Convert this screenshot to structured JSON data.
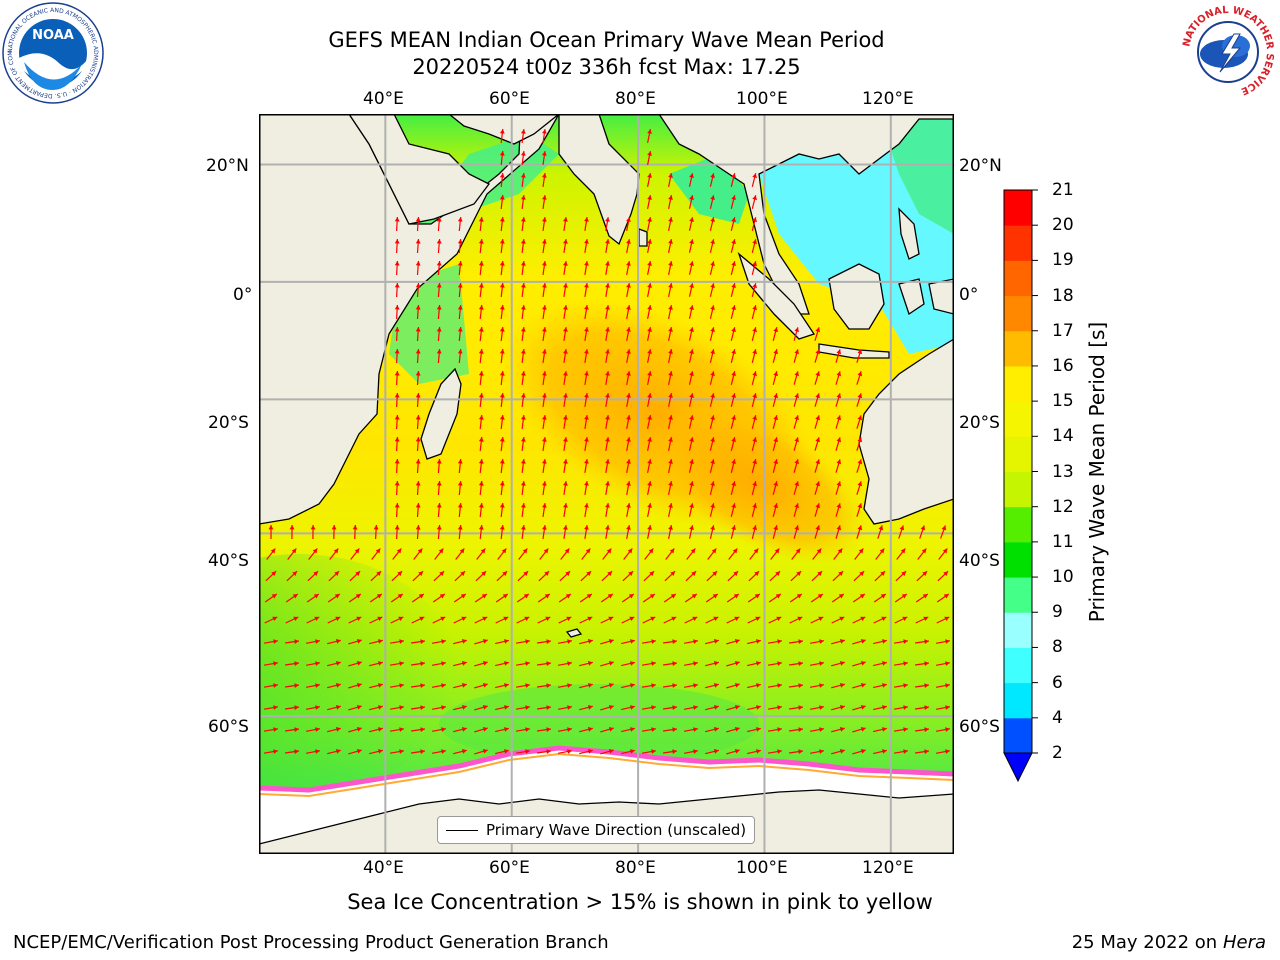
{
  "header": {
    "title_line1": "GEFS MEAN Indian Ocean Primary Wave Mean Period",
    "title_line2": "20220524 t00z 336h fcst   Max: 17.25"
  },
  "logos": {
    "left_name": "NOAA",
    "left_ring_text": "NATIONAL OCEANIC AND ATMOSPHERIC ADMINISTRATION · U.S. DEPARTMENT OF COMMERCE",
    "right_ring_text": "NATIONAL WEATHER SERVICE"
  },
  "map": {
    "lon_labels": [
      "40°E",
      "60°E",
      "80°E",
      "100°E",
      "120°E"
    ],
    "lat_labels": [
      "20°N",
      "0°",
      "20°S",
      "40°S",
      "60°S"
    ],
    "lon_values": [
      40,
      60,
      80,
      100,
      120
    ],
    "lat_values": [
      20,
      0,
      -20,
      -40,
      -60
    ],
    "extent": {
      "lon_min": 20,
      "lon_max": 130,
      "lat_min": -70,
      "lat_max": 28
    },
    "legend_label": "Primary Wave Direction (unscaled)",
    "arrow_color": "#ff0000",
    "land_color": "#efeee0",
    "ice_color": "#ffffff"
  },
  "colorbar": {
    "label": "Primary Wave Mean Period [s]",
    "ticks": [
      "2",
      "4",
      "6",
      "8",
      "9",
      "10",
      "11",
      "12",
      "13",
      "14",
      "15",
      "16",
      "17",
      "18",
      "19",
      "20",
      "21"
    ],
    "colors": [
      "#0050ff",
      "#00e8ff",
      "#40ffff",
      "#99ffff",
      "#44ff88",
      "#00e000",
      "#55ee00",
      "#c5f500",
      "#e5f500",
      "#f5f500",
      "#ffee00",
      "#ffbb00",
      "#ff8800",
      "#ff6600",
      "#ff3300",
      "#ff0000"
    ],
    "under_color": "#0000ff"
  },
  "chart_data": {
    "type": "heatmap",
    "variable": "Primary Wave Mean Period",
    "units": "s",
    "max_value": 17.25,
    "forecast": "20220524 t00z 336h fcst",
    "levels": [
      2,
      4,
      6,
      8,
      9,
      10,
      11,
      12,
      13,
      14,
      15,
      16,
      17,
      18,
      19,
      20,
      21
    ]
  },
  "footer": {
    "ice_note": "Sea Ice Concentration > 15% is shown in pink to yellow",
    "branch": "NCEP/EMC/Verification Post Processing Product Generation Branch",
    "date_prefix": "25 May 2022 on",
    "machine": "Hera"
  }
}
